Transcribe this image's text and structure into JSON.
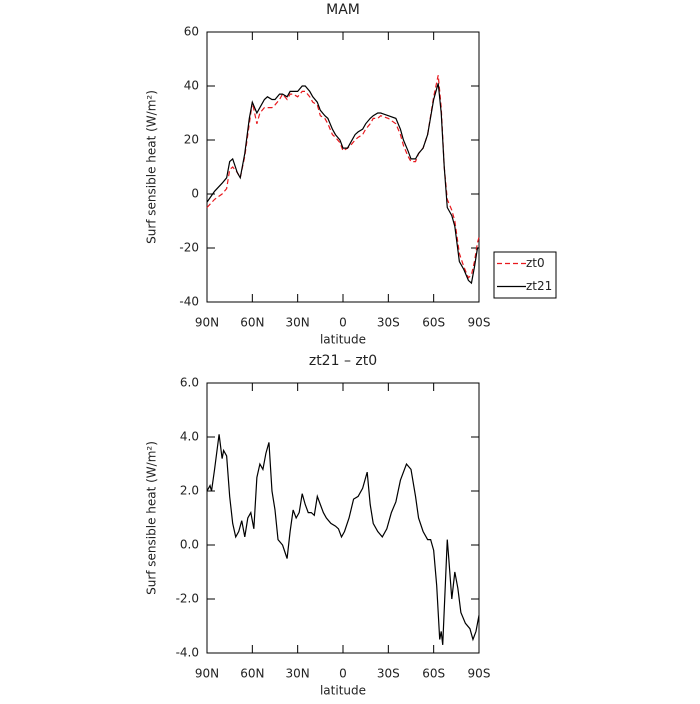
{
  "chart_data": [
    {
      "type": "line",
      "title": "MAM",
      "ylabel": "Surf sensible heat (W/m²)",
      "xlabel": "latitude",
      "x": [
        90,
        85,
        80,
        77,
        75,
        73,
        70,
        68,
        65,
        62,
        60,
        57,
        55,
        52,
        50,
        47,
        45,
        42,
        40,
        37,
        35,
        33,
        30,
        27,
        25,
        22,
        20,
        17,
        15,
        12,
        10,
        7,
        5,
        2,
        0,
        -3,
        -5,
        -8,
        -10,
        -13,
        -15,
        -18,
        -20,
        -23,
        -25,
        -30,
        -35,
        -38,
        -40,
        -43,
        -45,
        -48,
        -50,
        -53,
        -56,
        -60,
        -63,
        -65,
        -67,
        -69,
        -72,
        -74,
        -77,
        -80,
        -83,
        -85,
        -87,
        -89,
        -90
      ],
      "series": [
        {
          "name": "zt0",
          "color": "#e8191e",
          "dash": true,
          "values": [
            -5,
            -2,
            0,
            2,
            9,
            10,
            8,
            6,
            14,
            26,
            34,
            26,
            30,
            32,
            32,
            32,
            33,
            35,
            37,
            35,
            37,
            37,
            36,
            38,
            38,
            36,
            34,
            33,
            29,
            28,
            26,
            22,
            21,
            19,
            16,
            17,
            18,
            20,
            21,
            22,
            24,
            26,
            28,
            28,
            29,
            28,
            26,
            22,
            18,
            14,
            12,
            12,
            15,
            17,
            22,
            36,
            44,
            32,
            10,
            -2,
            -6,
            -10,
            -22,
            -27,
            -31,
            -30,
            -25,
            -18,
            -16
          ]
        },
        {
          "name": "zt21",
          "color": "#000000",
          "dash": false,
          "values": [
            -3,
            1,
            4,
            6,
            12,
            13,
            8,
            6,
            15,
            28,
            34,
            30,
            32,
            35,
            36,
            35,
            35,
            37,
            37,
            36,
            38,
            38,
            38,
            40,
            40,
            38,
            36,
            34,
            31,
            29,
            28,
            24,
            22,
            20,
            17,
            17,
            19,
            22,
            23,
            24,
            26,
            28,
            29,
            30,
            30,
            29,
            28,
            24,
            20,
            16,
            13,
            13,
            15,
            17,
            22,
            35,
            41,
            30,
            10,
            -5,
            -8,
            -12,
            -25,
            -28,
            -32,
            -33,
            -27,
            -20,
            -20
          ]
        }
      ],
      "xlim": [
        90,
        -90
      ],
      "xticks": [
        {
          "value": 90,
          "label": "90N"
        },
        {
          "value": 60,
          "label": "60N"
        },
        {
          "value": 30,
          "label": "30N"
        },
        0,
        {
          "value": -30,
          "label": "30S"
        },
        {
          "value": -60,
          "label": "60S"
        },
        {
          "value": -90,
          "label": "90S"
        }
      ],
      "ylim": [
        -40,
        60
      ],
      "yticks": [
        -40,
        -20,
        0,
        20,
        40,
        60
      ],
      "legend": "right"
    },
    {
      "type": "line",
      "title": "zt21 – zt0",
      "ylabel": "Surf sensible heat (W/m²)",
      "xlabel": "latitude",
      "x": [
        90,
        88,
        87,
        85,
        82,
        80,
        79,
        77,
        75,
        73,
        71,
        69,
        67,
        65,
        63,
        61,
        59,
        57,
        55,
        53,
        51,
        49,
        47,
        45,
        43,
        40,
        37,
        35,
        33,
        31,
        29,
        27,
        25,
        23,
        21,
        19,
        17,
        15,
        13,
        11,
        8,
        5,
        3,
        1,
        -1,
        -4,
        -7,
        -10,
        -13,
        -16,
        -18,
        -20,
        -23,
        -26,
        -29,
        -32,
        -35,
        -38,
        -42,
        -45,
        -48,
        -50,
        -53,
        -56,
        -58,
        -60,
        -62,
        -64,
        -65,
        -66,
        -69,
        -70,
        -72,
        -73,
        -74,
        -76,
        -78,
        -81,
        -84,
        -86,
        -88,
        -90
      ],
      "series": [
        {
          "color": "#000000",
          "dash": false,
          "values": [
            2.0,
            2.2,
            2.0,
            2.8,
            4.1,
            3.2,
            3.5,
            3.3,
            1.8,
            0.8,
            0.3,
            0.5,
            0.9,
            0.3,
            1.0,
            1.2,
            0.6,
            2.5,
            3.0,
            2.8,
            3.4,
            3.8,
            2.0,
            1.3,
            0.2,
            0.0,
            -0.5,
            0.5,
            1.3,
            1.0,
            1.2,
            1.9,
            1.5,
            1.2,
            1.2,
            1.1,
            1.8,
            1.5,
            1.2,
            1.0,
            0.8,
            0.7,
            0.6,
            0.3,
            0.5,
            1.0,
            1.7,
            1.8,
            2.1,
            2.7,
            1.5,
            0.8,
            0.5,
            0.3,
            0.6,
            1.2,
            1.6,
            2.4,
            3.0,
            2.8,
            1.8,
            1.0,
            0.5,
            0.2,
            0.2,
            -0.2,
            -1.5,
            -3.5,
            -3.2,
            -3.7,
            0.2,
            -0.5,
            -2.0,
            -1.5,
            -1.0,
            -1.6,
            -2.5,
            -2.9,
            -3.1,
            -3.5,
            -3.2,
            -2.6
          ]
        }
      ],
      "xlim": [
        90,
        -90
      ],
      "xticks": [
        {
          "value": 90,
          "label": "90N"
        },
        {
          "value": 60,
          "label": "60N"
        },
        {
          "value": 30,
          "label": "30N"
        },
        0,
        {
          "value": -30,
          "label": "30S"
        },
        {
          "value": -60,
          "label": "60S"
        },
        {
          "value": -90,
          "label": "90S"
        }
      ],
      "ylim": [
        -4,
        6
      ],
      "yticks": [
        {
          "value": -4,
          "label": "-4.0"
        },
        {
          "value": -2,
          "label": "-2.0"
        },
        {
          "value": 0,
          "label": "0.0"
        },
        {
          "value": 2,
          "label": "2.0"
        },
        {
          "value": 4,
          "label": "4.0"
        },
        {
          "value": 6,
          "label": "6.0"
        }
      ]
    }
  ]
}
